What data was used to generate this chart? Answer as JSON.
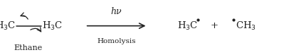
{
  "bg_color": "#ffffff",
  "text_color": "#222222",
  "figsize": [
    3.99,
    0.78
  ],
  "dpi": 100,
  "ethane_label": "Ethane",
  "arrow_above": "hν",
  "arrow_below": "Homolysis",
  "plus": "+"
}
